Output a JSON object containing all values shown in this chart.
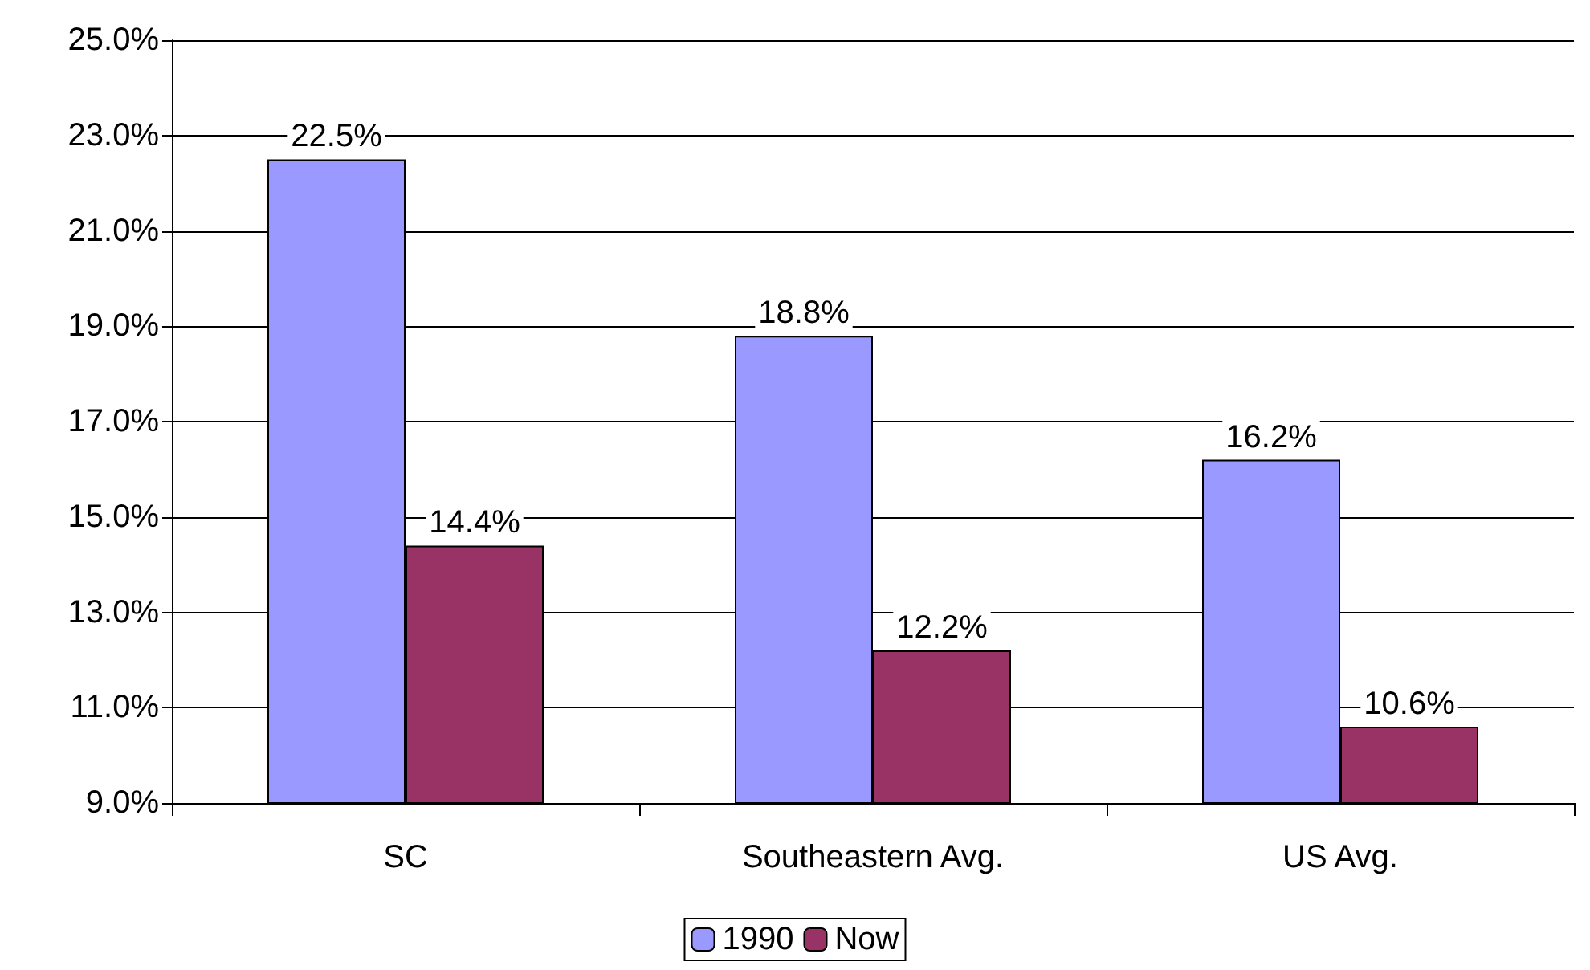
{
  "chart_data": {
    "type": "bar",
    "categories": [
      "SC",
      "Southeastern Avg.",
      "US Avg."
    ],
    "series": [
      {
        "name": "1990",
        "color": "#9999ff",
        "values": [
          22.5,
          18.8,
          16.2
        ],
        "value_labels": [
          "22.5%",
          "18.8%",
          "16.2%"
        ]
      },
      {
        "name": "Now",
        "color": "#993366",
        "values": [
          14.4,
          12.2,
          10.6
        ],
        "value_labels": [
          "14.4%",
          "12.2%",
          "10.6%"
        ]
      }
    ],
    "ylim": [
      9,
      25
    ],
    "yticks": [
      {
        "value": 9,
        "label": "9.0%"
      },
      {
        "value": 11,
        "label": "11.0%"
      },
      {
        "value": 13,
        "label": "13.0%"
      },
      {
        "value": 15,
        "label": "15.0%"
      },
      {
        "value": 17,
        "label": "17.0%"
      },
      {
        "value": 19,
        "label": "19.0%"
      },
      {
        "value": 21,
        "label": "21.0%"
      },
      {
        "value": 23,
        "label": "23.0%"
      },
      {
        "value": 25,
        "label": "25.0%"
      }
    ],
    "grid": "y",
    "legend": "bottom"
  }
}
